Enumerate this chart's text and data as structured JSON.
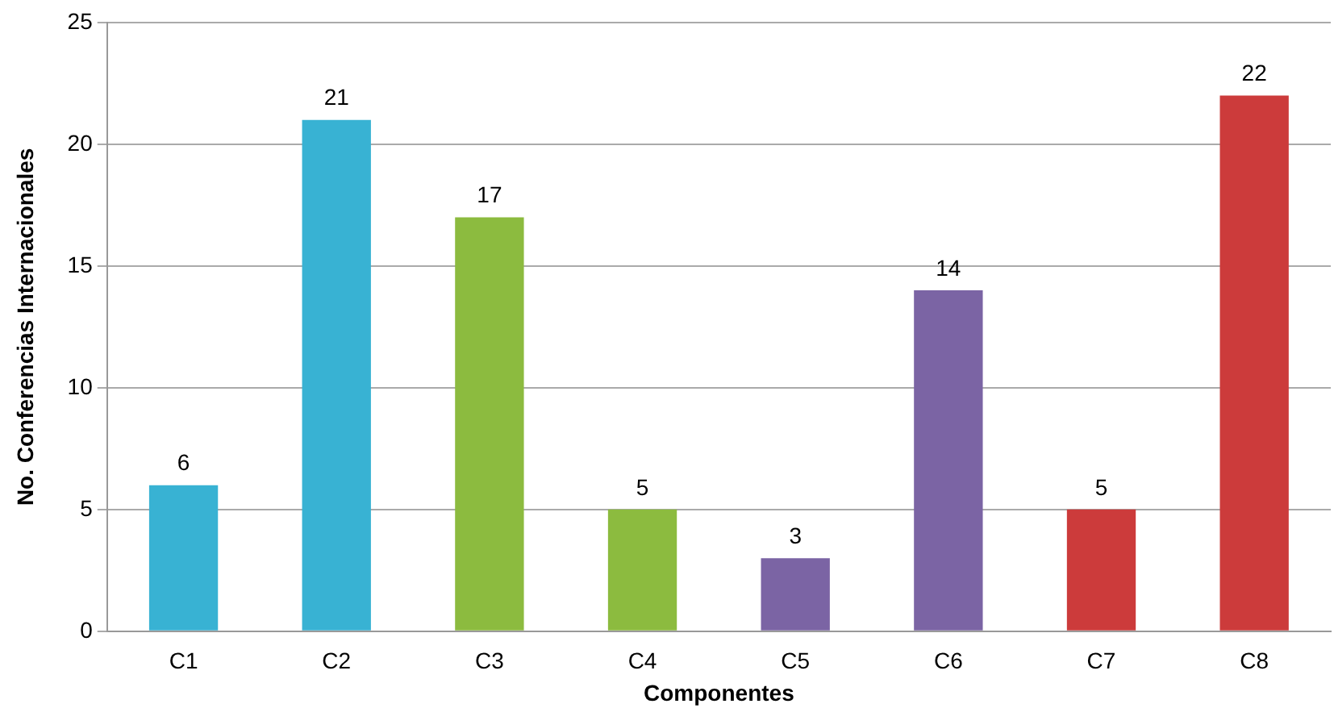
{
  "chart_data": {
    "type": "bar",
    "xlabel": "Componentes",
    "ylabel": "No. Conferencias Internacionales",
    "categories": [
      "C1",
      "C2",
      "C3",
      "C4",
      "C5",
      "C6",
      "C7",
      "C8"
    ],
    "values": [
      6,
      21,
      17,
      5,
      3,
      14,
      5,
      22
    ],
    "colors": [
      "#38b2d3",
      "#38b2d3",
      "#8cbb3f",
      "#8cbb3f",
      "#7b64a4",
      "#7b64a4",
      "#cc3b3b",
      "#cc3b3b"
    ],
    "ylim": [
      0,
      25
    ],
    "yticks": [
      0,
      5,
      10,
      15,
      20,
      25
    ],
    "grid": "y",
    "data_labels": true,
    "legend": false
  }
}
